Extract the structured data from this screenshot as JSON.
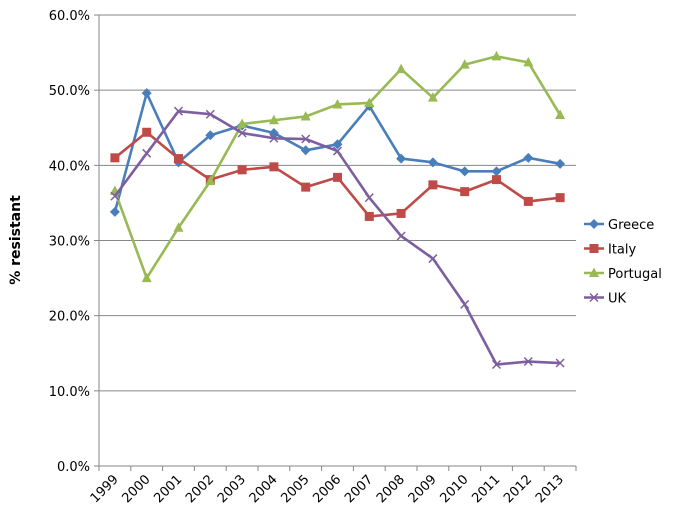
{
  "chart_data": {
    "type": "line",
    "title": "",
    "xlabel": "",
    "ylabel": "% resistant",
    "ylim": [
      0,
      60
    ],
    "y_ticks": [
      "0.0%",
      "10.0%",
      "20.0%",
      "30.0%",
      "40.0%",
      "50.0%",
      "60.0%"
    ],
    "categories": [
      "1999",
      "2000",
      "2001",
      "2002",
      "2003",
      "2004",
      "2005",
      "2006",
      "2007",
      "2008",
      "2009",
      "2010",
      "2011",
      "2012",
      "2013"
    ],
    "grid": "horizontal",
    "legend_position": "right",
    "series": [
      {
        "name": "Greece",
        "color": "#4A7EBB",
        "marker": "diamond",
        "values": [
          33.8,
          49.6,
          40.4,
          44.0,
          45.3,
          44.3,
          42.0,
          42.8,
          47.9,
          40.9,
          40.4,
          39.2,
          39.2,
          41.0,
          40.2
        ]
      },
      {
        "name": "Italy",
        "color": "#BE4B48",
        "marker": "square",
        "values": [
          41.0,
          44.4,
          40.9,
          38.1,
          39.4,
          39.8,
          37.1,
          38.4,
          33.2,
          33.6,
          37.4,
          36.5,
          38.1,
          35.2,
          35.7
        ]
      },
      {
        "name": "Portugal",
        "color": "#98B954",
        "marker": "triangle",
        "values": [
          36.6,
          25.0,
          31.7,
          37.9,
          45.5,
          46.0,
          46.5,
          48.1,
          48.3,
          52.8,
          49.0,
          53.4,
          54.5,
          53.7,
          46.7
        ]
      },
      {
        "name": "UK",
        "color": "#7D5FA0",
        "marker": "x",
        "values": [
          35.9,
          41.6,
          47.2,
          46.8,
          44.3,
          43.6,
          43.5,
          41.9,
          35.7,
          30.6,
          27.6,
          21.5,
          13.5,
          13.9,
          13.7
        ]
      }
    ]
  }
}
